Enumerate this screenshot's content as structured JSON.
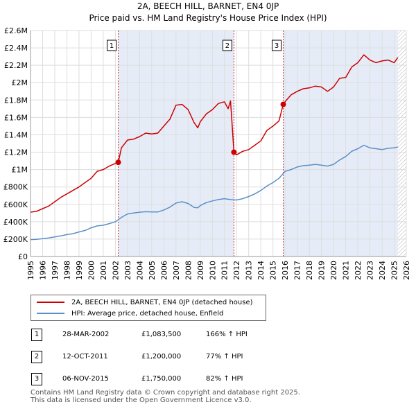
{
  "chart_data": {
    "type": "line",
    "title": "2A, BEECH HILL, BARNET, EN4 0JP",
    "subtitle": "Price paid vs. HM Land Registry's House Price Index (HPI)",
    "xlabel": "",
    "ylabel": "",
    "xlim": [
      1995,
      2026
    ],
    "ylim": [
      0,
      2600000
    ],
    "x_ticks": [
      "1995",
      "1996",
      "1997",
      "1998",
      "1999",
      "2000",
      "2001",
      "2002",
      "2003",
      "2004",
      "2005",
      "2006",
      "2007",
      "2008",
      "2009",
      "2010",
      "2011",
      "2012",
      "2013",
      "2014",
      "2015",
      "2016",
      "2017",
      "2018",
      "2019",
      "2020",
      "2021",
      "2022",
      "2023",
      "2024",
      "2025",
      "2026"
    ],
    "y_ticks": [
      {
        "value": 0,
        "label": "£0"
      },
      {
        "value": 200000,
        "label": "£200K"
      },
      {
        "value": 400000,
        "label": "£400K"
      },
      {
        "value": 600000,
        "label": "£600K"
      },
      {
        "value": 800000,
        "label": "£800K"
      },
      {
        "value": 1000000,
        "label": "£1M"
      },
      {
        "value": 1200000,
        "label": "£1.2M"
      },
      {
        "value": 1400000,
        "label": "£1.4M"
      },
      {
        "value": 1600000,
        "label": "£1.6M"
      },
      {
        "value": 1800000,
        "label": "£1.8M"
      },
      {
        "value": 2000000,
        "label": "£2M"
      },
      {
        "value": 2200000,
        "label": "£2.2M"
      },
      {
        "value": 2400000,
        "label": "£2.4M"
      },
      {
        "value": 2600000,
        "label": "£2.6M"
      }
    ],
    "shaded_regions": [
      [
        2002.24,
        2011.78
      ],
      [
        2015.85,
        2025.3
      ]
    ],
    "hatched_region": [
      2025.3,
      2026
    ],
    "series": [
      {
        "name": "2A, BEECH HILL, BARNET, EN4 0JP (detached house)",
        "color": "#cc0000",
        "x": [
          1995.0,
          1995.5,
          1996.0,
          1996.5,
          1997.0,
          1997.5,
          1998.0,
          1998.5,
          1999.0,
          1999.5,
          2000.0,
          2000.5,
          2001.0,
          2001.5,
          2002.0,
          2002.24,
          2002.5,
          2003.0,
          2003.5,
          2004.0,
          2004.5,
          2005.0,
          2005.5,
          2006.0,
          2006.5,
          2007.0,
          2007.5,
          2008.0,
          2008.5,
          2008.8,
          2009.0,
          2009.5,
          2010.0,
          2010.5,
          2011.0,
          2011.3,
          2011.5,
          2011.78,
          2012.0,
          2012.5,
          2013.0,
          2013.5,
          2014.0,
          2014.5,
          2015.0,
          2015.5,
          2015.85,
          2016.0,
          2016.5,
          2017.0,
          2017.5,
          2018.0,
          2018.5,
          2019.0,
          2019.5,
          2020.0,
          2020.5,
          2021.0,
          2021.5,
          2022.0,
          2022.5,
          2023.0,
          2023.5,
          2024.0,
          2024.5,
          2025.0,
          2025.3
        ],
        "values": [
          510000,
          520000,
          550000,
          580000,
          630000,
          680000,
          720000,
          760000,
          800000,
          850000,
          900000,
          980000,
          1000000,
          1040000,
          1070000,
          1083500,
          1250000,
          1340000,
          1350000,
          1380000,
          1420000,
          1410000,
          1420000,
          1500000,
          1580000,
          1740000,
          1750000,
          1690000,
          1540000,
          1480000,
          1550000,
          1640000,
          1690000,
          1760000,
          1780000,
          1700000,
          1790000,
          1200000,
          1170000,
          1210000,
          1230000,
          1280000,
          1330000,
          1450000,
          1500000,
          1560000,
          1750000,
          1780000,
          1860000,
          1900000,
          1930000,
          1940000,
          1960000,
          1950000,
          1900000,
          1950000,
          2050000,
          2060000,
          2180000,
          2230000,
          2320000,
          2260000,
          2230000,
          2250000,
          2260000,
          2230000,
          2290000
        ]
      },
      {
        "name": "HPI: Average price, detached house, Enfield",
        "color": "#5b8fc7",
        "x": [
          1995.0,
          1995.5,
          1996.0,
          1996.5,
          1997.0,
          1997.5,
          1998.0,
          1998.5,
          1999.0,
          1999.5,
          2000.0,
          2000.5,
          2001.0,
          2001.5,
          2002.0,
          2002.5,
          2003.0,
          2003.5,
          2004.0,
          2004.5,
          2005.0,
          2005.5,
          2006.0,
          2006.5,
          2007.0,
          2007.5,
          2008.0,
          2008.5,
          2008.8,
          2009.0,
          2009.5,
          2010.0,
          2010.5,
          2011.0,
          2011.5,
          2012.0,
          2012.5,
          2013.0,
          2013.5,
          2014.0,
          2014.5,
          2015.0,
          2015.5,
          2016.0,
          2016.5,
          2017.0,
          2017.5,
          2018.0,
          2018.5,
          2019.0,
          2019.5,
          2020.0,
          2020.5,
          2021.0,
          2021.5,
          2022.0,
          2022.5,
          2023.0,
          2023.5,
          2024.0,
          2024.5,
          2025.0,
          2025.3
        ],
        "values": [
          195000,
          198000,
          205000,
          213000,
          225000,
          237000,
          252000,
          262000,
          282000,
          300000,
          330000,
          352000,
          360000,
          378000,
          400000,
          450000,
          490000,
          500000,
          510000,
          515000,
          512000,
          512000,
          535000,
          568000,
          615000,
          630000,
          610000,
          565000,
          560000,
          585000,
          620000,
          640000,
          655000,
          665000,
          655000,
          650000,
          665000,
          690000,
          720000,
          760000,
          810000,
          850000,
          900000,
          980000,
          1000000,
          1030000,
          1045000,
          1050000,
          1060000,
          1050000,
          1040000,
          1060000,
          1110000,
          1150000,
          1210000,
          1240000,
          1280000,
          1250000,
          1240000,
          1230000,
          1245000,
          1250000,
          1260000
        ]
      }
    ],
    "markers": [
      {
        "label": "1",
        "x": 2002.24,
        "y": 1083500
      },
      {
        "label": "2",
        "x": 2011.78,
        "y": 1200000
      },
      {
        "label": "3",
        "x": 2015.85,
        "y": 1750000
      }
    ]
  },
  "legend": {
    "price_line": "2A, BEECH HILL, BARNET, EN4 0JP (detached house)",
    "hpi_line": "HPI: Average price, detached house, Enfield",
    "price_color": "#cc0000",
    "hpi_color": "#5b8fc7"
  },
  "sales": [
    {
      "num": "1",
      "date": "28-MAR-2002",
      "price": "£1,083,500",
      "hpi": "166% ↑ HPI"
    },
    {
      "num": "2",
      "date": "12-OCT-2011",
      "price": "£1,200,000",
      "hpi": "77% ↑ HPI"
    },
    {
      "num": "3",
      "date": "06-NOV-2015",
      "price": "£1,750,000",
      "hpi": "82% ↑ HPI"
    }
  ],
  "footer": {
    "line1": "Contains HM Land Registry data © Crown copyright and database right 2025.",
    "line2": "This data is licensed under the Open Government Licence v3.0."
  }
}
